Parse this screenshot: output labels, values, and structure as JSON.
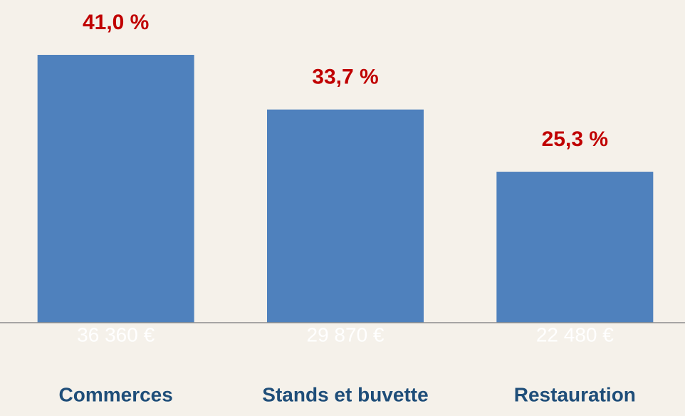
{
  "chart_data": {
    "type": "bar",
    "categories": [
      "Commerces",
      "Stands et buvette",
      "Restauration"
    ],
    "values": [
      36360,
      29870,
      22480
    ],
    "value_labels": [
      "36 360 €",
      "29 870 €",
      "22 480 €"
    ],
    "shares": [
      41.0,
      33.7,
      25.3
    ],
    "share_labels": [
      "41,0 %",
      "33,7 %",
      "25,3 %"
    ],
    "color": "#4f81bd",
    "ylim": [
      4550,
      40000
    ]
  }
}
